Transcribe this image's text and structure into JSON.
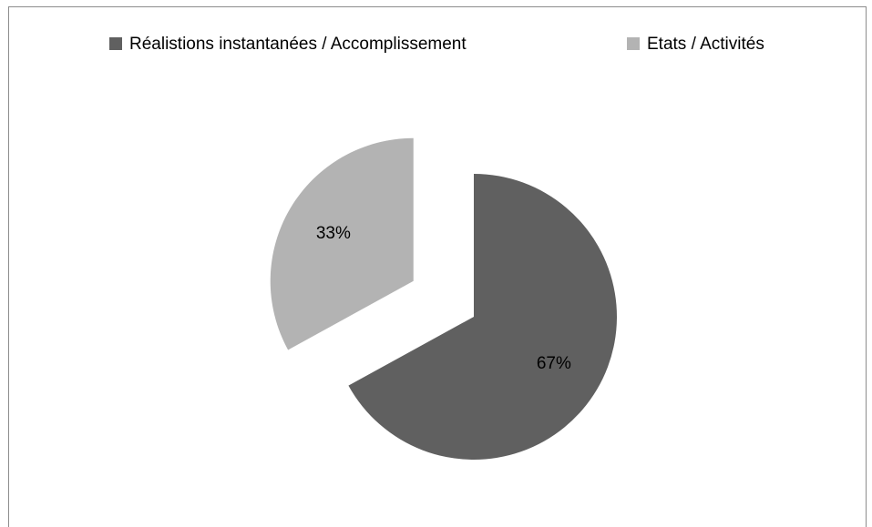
{
  "chart_data": {
    "type": "pie",
    "categories": [
      "Réalistions instantanées / Accomplissement",
      "Etats / Activités"
    ],
    "values": [
      67,
      33
    ],
    "value_labels": [
      "67%",
      "33%"
    ],
    "colors": [
      "#606060",
      "#b3b3b3"
    ],
    "explode": [
      false,
      true
    ],
    "legend": "top"
  }
}
